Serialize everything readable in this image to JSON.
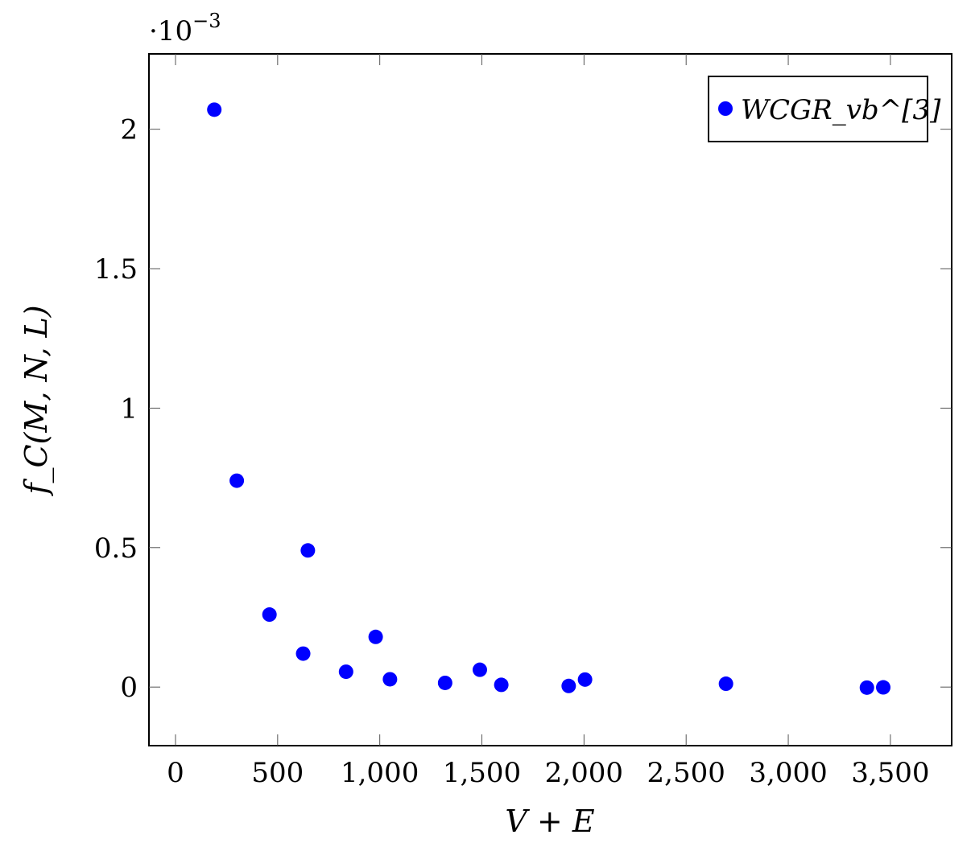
{
  "chart_data": {
    "type": "scatter",
    "title": "",
    "xlabel": "V + E",
    "ylabel": "f_C(M, N, L)",
    "y_scale_note": "·10",
    "y_scale_exp": "−3",
    "xlim": [
      -130,
      3800
    ],
    "ylim": [
      -0.21,
      2.27
    ],
    "x_ticks": [
      0,
      500,
      1000,
      1500,
      2000,
      2500,
      3000,
      3500
    ],
    "x_tick_labels": [
      "0",
      "500",
      "1,000",
      "1,500",
      "2,000",
      "2,500",
      "3,000",
      "3,500"
    ],
    "y_ticks": [
      0,
      0.5,
      1,
      1.5,
      2
    ],
    "y_tick_labels": [
      "0",
      "0.5",
      "1",
      "1.5",
      "2"
    ],
    "grid": false,
    "legend_position": "top-right",
    "series": [
      {
        "name": "WCGR_vb^[3]",
        "color": "#0000ff",
        "marker": "circle",
        "points": [
          {
            "x": 190,
            "y": 2.07
          },
          {
            "x": 300,
            "y": 0.74
          },
          {
            "x": 460,
            "y": 0.26
          },
          {
            "x": 625,
            "y": 0.12
          },
          {
            "x": 648,
            "y": 0.49
          },
          {
            "x": 835,
            "y": 0.055
          },
          {
            "x": 980,
            "y": 0.18
          },
          {
            "x": 1050,
            "y": 0.028
          },
          {
            "x": 1320,
            "y": 0.015
          },
          {
            "x": 1490,
            "y": 0.062
          },
          {
            "x": 1595,
            "y": 0.008
          },
          {
            "x": 1925,
            "y": 0.004
          },
          {
            "x": 2005,
            "y": 0.027
          },
          {
            "x": 2695,
            "y": 0.012
          },
          {
            "x": 3385,
            "y": -0.002
          },
          {
            "x": 3465,
            "y": -0.001
          }
        ]
      }
    ]
  }
}
